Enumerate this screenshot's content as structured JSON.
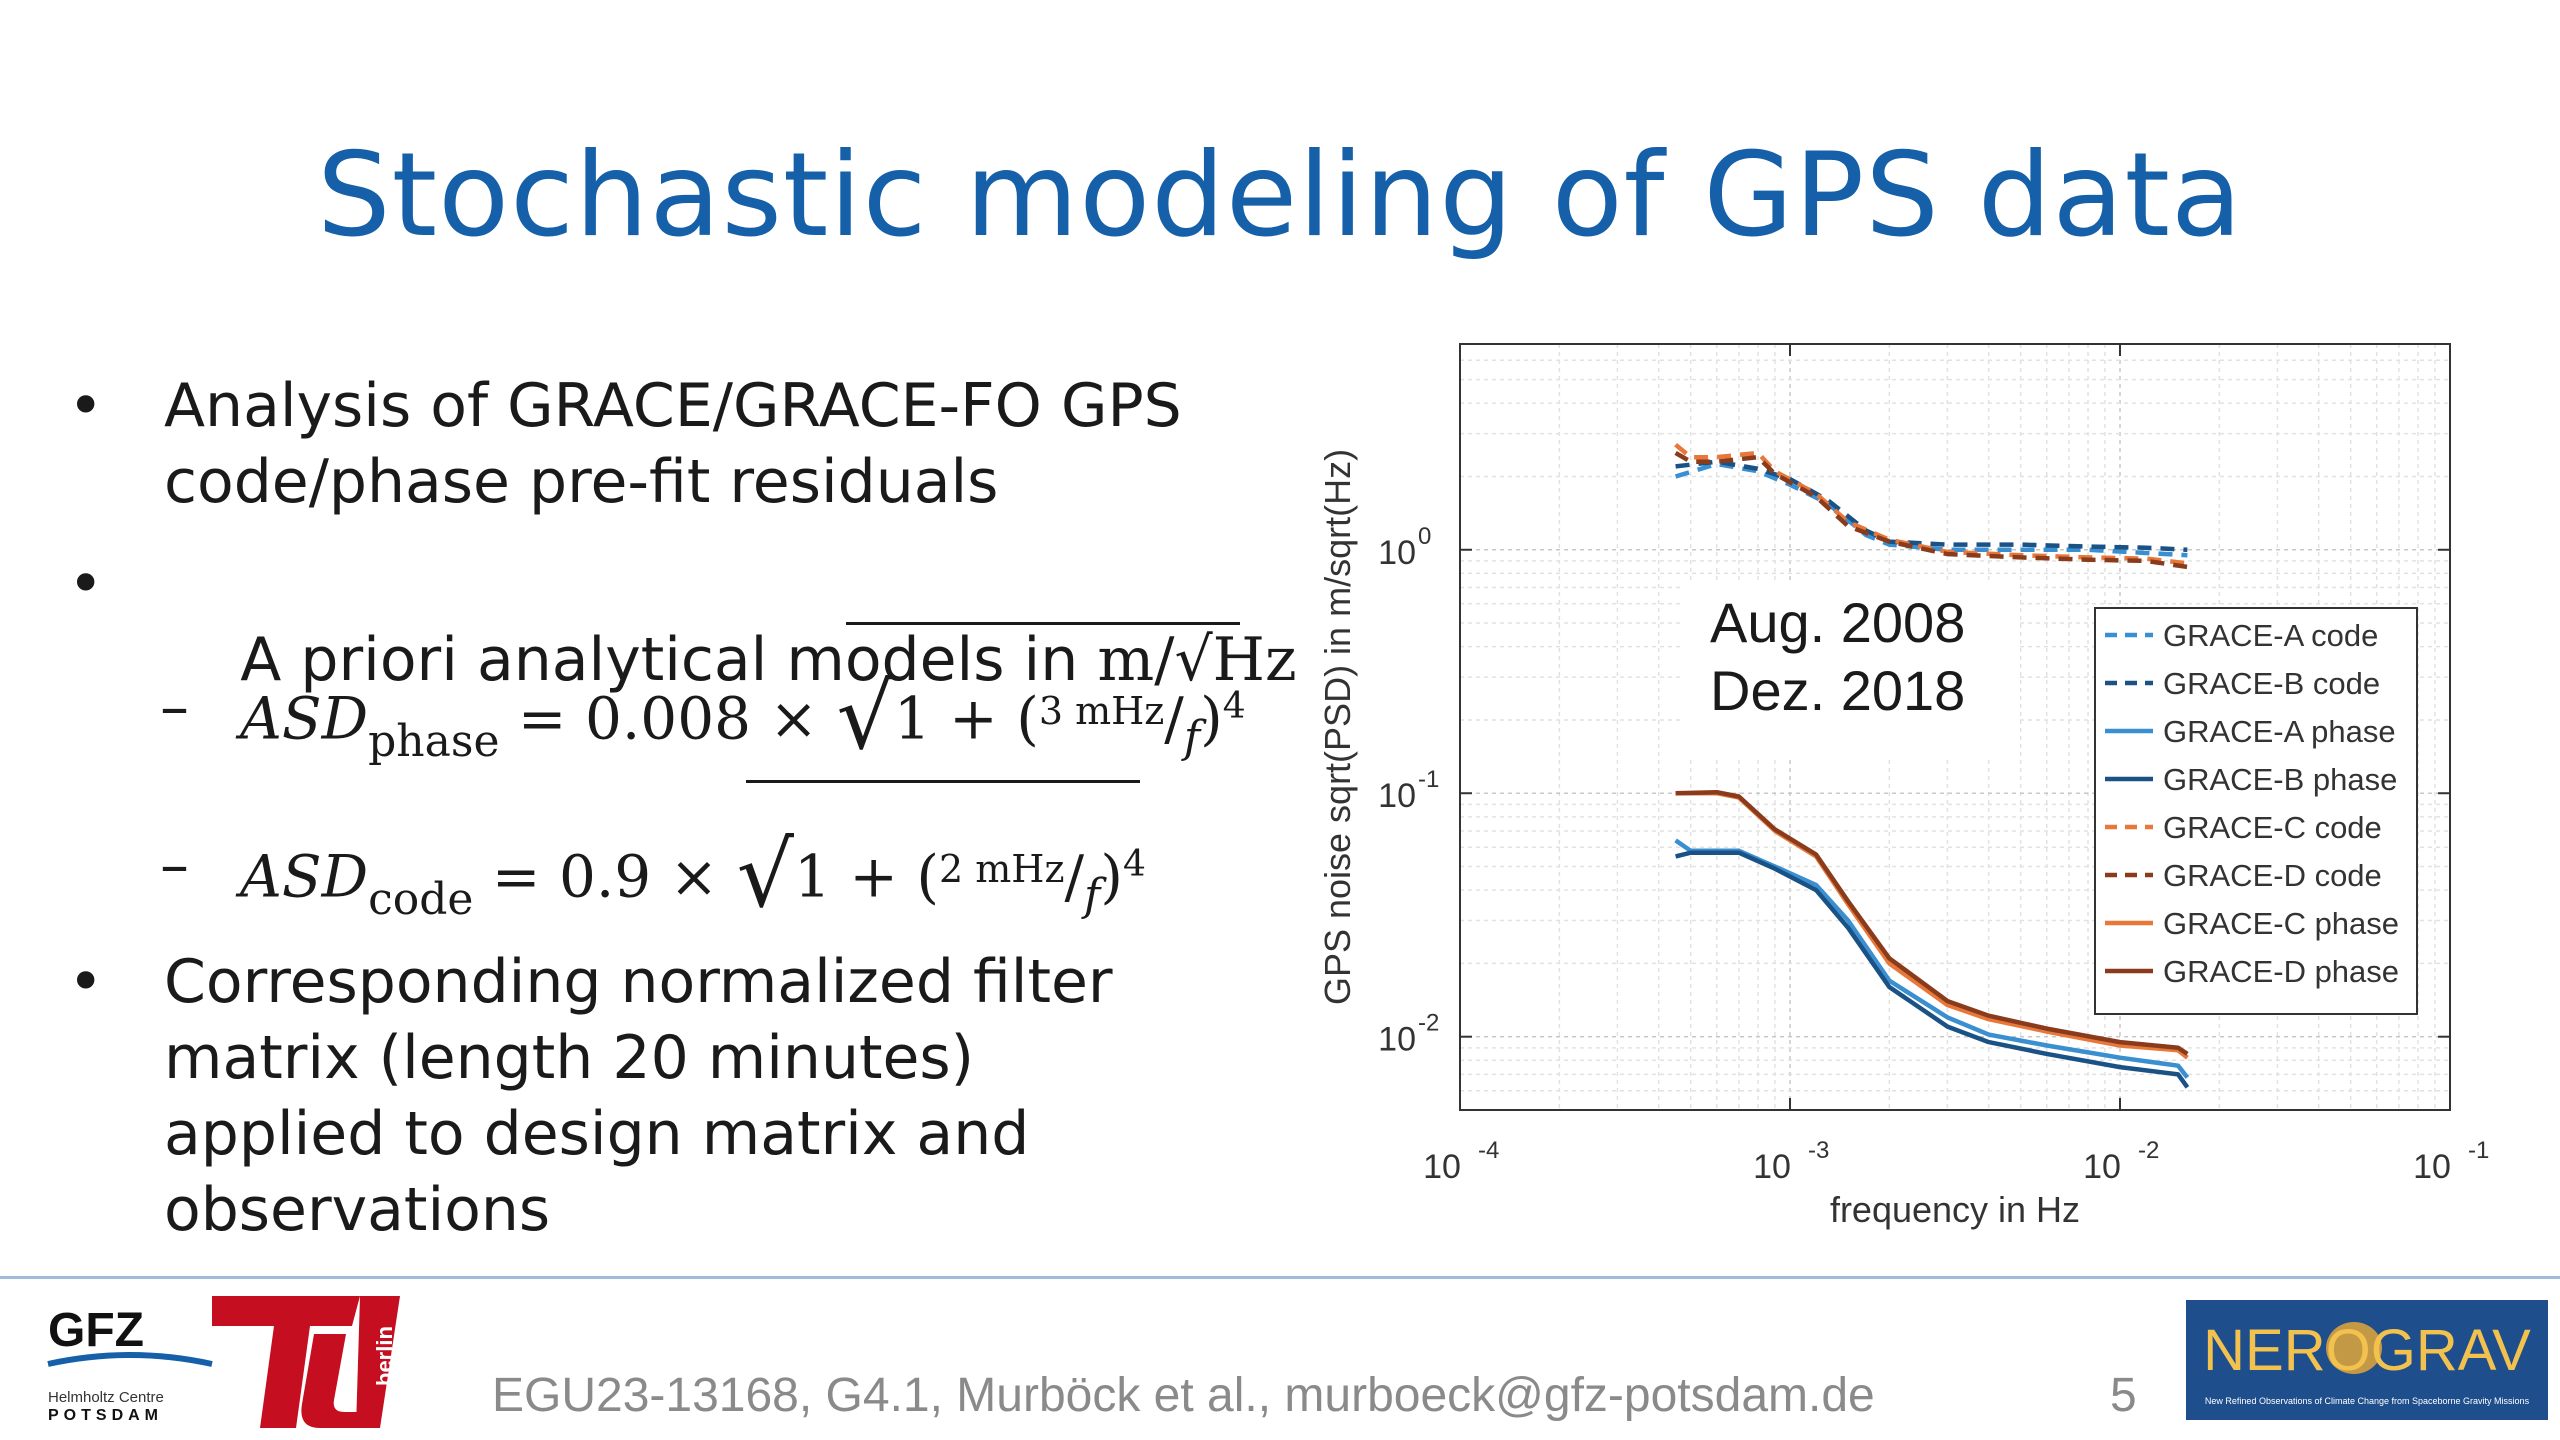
{
  "slide": {
    "title": "Stochastic modeling of GPS data",
    "bullets": [
      {
        "lines": [
          "Analysis of GRACE/GRACE-FO GPS",
          "code/phase pre-fit residuals"
        ]
      },
      {
        "lines": [
          "A priori analytical models in"
        ],
        "unit": "m/√Hz"
      },
      {
        "lines": [
          "Corresponding normalized filter",
          "matrix (length 20 minutes)",
          "applied to design matrix and",
          "observations"
        ]
      }
    ],
    "formulas": [
      {
        "dash": "–",
        "lhs": "ASD",
        "sub": "phase",
        "coef": "= 0.008 ×",
        "one_plus": "1 + (",
        "num": "3 mHz",
        "den": "f",
        "close": ")",
        "exp": "4"
      },
      {
        "dash": "–",
        "lhs": "ASD",
        "sub": "code",
        "coef": "= 0.9 ×",
        "one_plus": "1 + (",
        "num": "2 mHz",
        "den": "f",
        "close": ")",
        "exp": "4"
      }
    ]
  },
  "footer": {
    "citation": "EGU23-13168, G4.1, Murböck et al., murboeck@gfz-potsdam.de",
    "page": "5",
    "gfz_text": "GFZ",
    "gfz_sub1": "Helmholtz Centre",
    "gfz_sub2": "POTSDAM",
    "tu_text": "berlin",
    "nerograv_text": "NEROGRAV",
    "nerograv_sub": "New Refined Observations of Climate Change from Spaceborne Gravity Missions"
  },
  "chart_data": {
    "type": "line",
    "xlabel": "frequency in Hz",
    "ylabel": "GPS noise sqrt(PSD) in m/sqrt(Hz)",
    "xscale": "log",
    "yscale": "log",
    "xlim": [
      0.0001,
      0.1
    ],
    "ylim": [
      0.005,
      7
    ],
    "xticks": [
      {
        "base": "10",
        "exp": "-4"
      },
      {
        "base": "10",
        "exp": "-3"
      },
      {
        "base": "10",
        "exp": "-2"
      },
      {
        "base": "10",
        "exp": "-1"
      }
    ],
    "yticks": [
      {
        "base": "10",
        "exp": "-2",
        "value": 0.01
      },
      {
        "base": "10",
        "exp": "-1",
        "value": 0.1
      },
      {
        "base": "10",
        "exp": "0",
        "value": 1
      }
    ],
    "grid": true,
    "legend_position": "right",
    "annotation": [
      "Aug. 2008",
      "Dez. 2018"
    ],
    "series": [
      {
        "name": "GRACE-A code",
        "color": "#3a8fd1",
        "dash": true,
        "x": [
          0.00045,
          0.0006,
          0.0008,
          0.001,
          0.0013,
          0.0017,
          0.002,
          0.003,
          0.005,
          0.008,
          0.012,
          0.016
        ],
        "y": [
          2.0,
          2.25,
          2.1,
          1.85,
          1.55,
          1.15,
          1.05,
          1.0,
          1.0,
          1.0,
          0.97,
          0.95
        ]
      },
      {
        "name": "GRACE-B code",
        "color": "#1a5286",
        "dash": true,
        "x": [
          0.00045,
          0.0006,
          0.0008,
          0.001,
          0.0013,
          0.0017,
          0.002,
          0.003,
          0.005,
          0.008,
          0.012,
          0.016
        ],
        "y": [
          2.2,
          2.3,
          2.15,
          1.95,
          1.6,
          1.2,
          1.08,
          1.05,
          1.05,
          1.03,
          1.02,
          1.0
        ]
      },
      {
        "name": "GRACE-A phase",
        "color": "#3a8fd1",
        "dash": false,
        "x": [
          0.00045,
          0.0005,
          0.0007,
          0.0009,
          0.0012,
          0.0015,
          0.002,
          0.003,
          0.004,
          0.006,
          0.01,
          0.015,
          0.016
        ],
        "y": [
          0.064,
          0.058,
          0.058,
          0.05,
          0.042,
          0.03,
          0.017,
          0.012,
          0.0102,
          0.0092,
          0.0082,
          0.0076,
          0.0068
        ]
      },
      {
        "name": "GRACE-B phase",
        "color": "#1a5286",
        "dash": false,
        "x": [
          0.00045,
          0.0005,
          0.0007,
          0.0009,
          0.0012,
          0.0015,
          0.002,
          0.003,
          0.004,
          0.006,
          0.01,
          0.015,
          0.016
        ],
        "y": [
          0.055,
          0.057,
          0.057,
          0.049,
          0.04,
          0.028,
          0.016,
          0.011,
          0.0095,
          0.0085,
          0.0075,
          0.007,
          0.0062
        ]
      },
      {
        "name": "GRACE-C code",
        "color": "#e8773a",
        "dash": true,
        "x": [
          0.00045,
          0.0005,
          0.0006,
          0.0008,
          0.0009,
          0.0012,
          0.0015,
          0.002,
          0.003,
          0.005,
          0.008,
          0.012,
          0.016
        ],
        "y": [
          2.7,
          2.4,
          2.4,
          2.5,
          2.1,
          1.7,
          1.3,
          1.1,
          0.98,
          0.95,
          0.93,
          0.92,
          0.88
        ]
      },
      {
        "name": "GRACE-D code",
        "color": "#8a3b1c",
        "dash": true,
        "x": [
          0.00045,
          0.0005,
          0.0006,
          0.0008,
          0.0009,
          0.0012,
          0.0015,
          0.002,
          0.003,
          0.005,
          0.008,
          0.012,
          0.016
        ],
        "y": [
          2.5,
          2.3,
          2.3,
          2.4,
          2.05,
          1.65,
          1.25,
          1.08,
          0.96,
          0.93,
          0.91,
          0.9,
          0.85
        ]
      },
      {
        "name": "GRACE-C phase",
        "color": "#e8773a",
        "dash": false,
        "x": [
          0.00045,
          0.0006,
          0.0007,
          0.0009,
          0.0012,
          0.0015,
          0.002,
          0.003,
          0.004,
          0.006,
          0.01,
          0.015,
          0.016
        ],
        "y": [
          0.1,
          0.1,
          0.096,
          0.07,
          0.055,
          0.035,
          0.02,
          0.0135,
          0.0118,
          0.0105,
          0.0092,
          0.0088,
          0.0082
        ]
      },
      {
        "name": "GRACE-D phase",
        "color": "#8a3b1c",
        "dash": false,
        "x": [
          0.00045,
          0.0006,
          0.0007,
          0.0009,
          0.0012,
          0.0015,
          0.002,
          0.003,
          0.004,
          0.006,
          0.01,
          0.015,
          0.016
        ],
        "y": [
          0.1,
          0.101,
          0.097,
          0.071,
          0.056,
          0.036,
          0.021,
          0.014,
          0.0122,
          0.0108,
          0.0095,
          0.009,
          0.0085
        ]
      }
    ]
  }
}
